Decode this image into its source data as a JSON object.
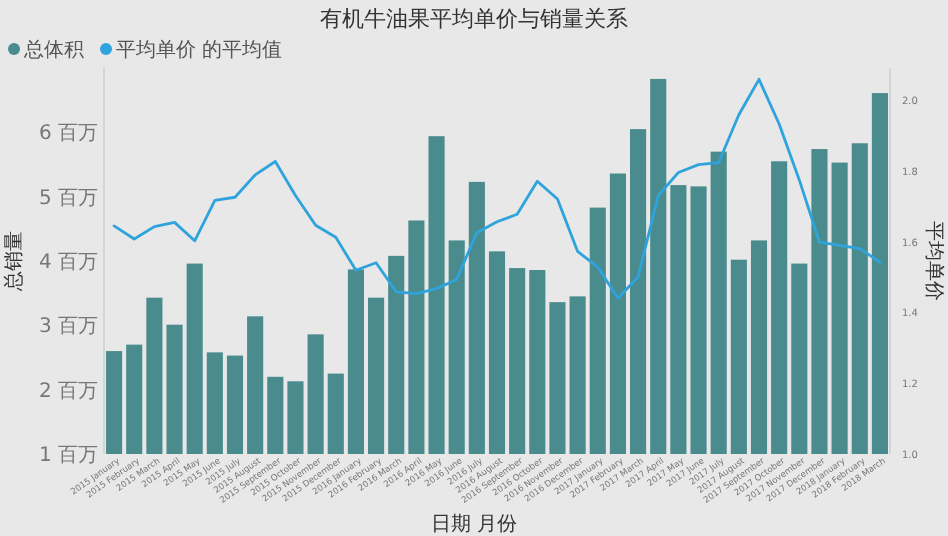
{
  "chart_data": {
    "type": "bar",
    "title": "有机牛油果平均单价与销量关系",
    "xlabel": "日期 月份",
    "ylabel": "总销量",
    "y2label": "平均单价",
    "legend": "top left",
    "categories": [
      "2015 January",
      "2015 February",
      "2015 March",
      "2015 April",
      "2015 May",
      "2015 June",
      "2015 July",
      "2015 August",
      "2015 September",
      "2015 October",
      "2015 November",
      "2015 December",
      "2016 January",
      "2016 February",
      "2016 March",
      "2016 April",
      "2016 May",
      "2016 June",
      "2016 July",
      "2016 August",
      "2016 September",
      "2016 October",
      "2016 November",
      "2016 December",
      "2017 January",
      "2017 February",
      "2017 March",
      "2017 April",
      "2017 May",
      "2017 June",
      "2017 July",
      "2017 August",
      "2017 September",
      "2017 October",
      "2017 November",
      "2017 December",
      "2018 January",
      "2018 February",
      "2018 March"
    ],
    "ylim": [
      1,
      7
    ],
    "yticks": [
      {
        "value": 1,
        "label": "1 百万"
      },
      {
        "value": 2,
        "label": "2 百万"
      },
      {
        "value": 3,
        "label": "3 百万"
      },
      {
        "value": 4,
        "label": "4 百万"
      },
      {
        "value": 5,
        "label": "5 百万"
      },
      {
        "value": 6,
        "label": "6 百万"
      }
    ],
    "y2lim": [
      1,
      2.09
    ],
    "y2ticks": [
      {
        "value": 1,
        "label": "1.0"
      },
      {
        "value": 1.2,
        "label": "1.2"
      },
      {
        "value": 1.4,
        "label": "1.4"
      },
      {
        "value": 1.6,
        "label": "1.6"
      },
      {
        "value": 1.8,
        "label": "1.8"
      },
      {
        "value": 2,
        "label": "2.0"
      }
    ],
    "series": [
      {
        "name": "总体积",
        "color": "#4a8b8e",
        "values": [
          2.6,
          2.7,
          3.43,
          3.01,
          3.96,
          2.58,
          2.53,
          3.14,
          2.2,
          2.13,
          2.86,
          2.25,
          3.87,
          3.43,
          4.08,
          4.63,
          5.94,
          4.32,
          5.23,
          4.15,
          3.89,
          3.86,
          3.36,
          3.45,
          4.83,
          5.36,
          6.05,
          6.83,
          5.18,
          5.16,
          5.7,
          4.02,
          4.32,
          5.55,
          3.96,
          5.74,
          5.53,
          5.83,
          6.61
        ]
      },
      {
        "name": "平均单价 的平均值",
        "type": "line",
        "axis": "y2",
        "color": "#2ea3dc",
        "values": [
          1.644,
          1.607,
          1.642,
          1.654,
          1.602,
          1.716,
          1.725,
          1.788,
          1.826,
          1.73,
          1.646,
          1.612,
          1.519,
          1.54,
          1.458,
          1.453,
          1.467,
          1.493,
          1.625,
          1.656,
          1.677,
          1.77,
          1.72,
          1.572,
          1.528,
          1.44,
          1.5,
          1.73,
          1.795,
          1.817,
          1.823,
          1.958,
          2.058,
          1.932,
          1.774,
          1.598,
          1.589,
          1.58,
          1.542
        ]
      }
    ]
  }
}
